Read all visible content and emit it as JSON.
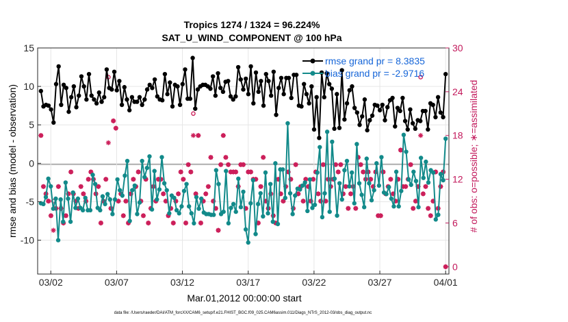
{
  "chart_data": {
    "type": "line",
    "title_line1": "Tropics 1274 / 1324 = 96.224%",
    "title_line2": "SAT_U_WIND_COMPONENT @ 100 hPa",
    "xlabel": "Mar.01,2012 00:00:00 start",
    "ylabel_left": "rmse and bias (model - observation)",
    "ylabel_right": "# of obs: o=possible; ∗=assimilated",
    "footnote": "data file: /Users/raeder/DAI/ATM_forcXX/CAM6_setup/f.e21.FHIST_BGC.f09_025.CAM6assim.011/Diags_NTrS_2012-03/obs_diag_output.nc",
    "xlim": [
      0,
      31.25
    ],
    "ylim_left": [
      -14.4,
      15
    ],
    "ylim_right": [
      -1,
      30
    ],
    "x_tick_labels": [
      "03/02",
      "03/07",
      "03/12",
      "03/17",
      "03/22",
      "03/27",
      "04/01"
    ],
    "x_tick_values": [
      1,
      6,
      11,
      16,
      21,
      26,
      31
    ],
    "y_left_ticks": [
      "15",
      "10",
      "5",
      "0",
      "-5",
      "-10"
    ],
    "y_left_tick_values": [
      15,
      10,
      5,
      0,
      -5,
      -10
    ],
    "y_right_ticks": [
      "30",
      "24",
      "18",
      "12",
      "6",
      "0"
    ],
    "y_right_tick_values": [
      30,
      24,
      18,
      12,
      6,
      0
    ],
    "legend": [
      "rmse grand pr = 8.3835",
      "bias grand pr = -2.9716"
    ],
    "legend_position": "top-right",
    "colors": {
      "rmse": "#000000",
      "bias": "#128a8a",
      "obs": "#cc1f5a",
      "legend_text": "#1565d8",
      "zero_line": "#b8b8b8"
    },
    "series": [
      {
        "name": "rmse",
        "marker": "dot",
        "values": [
          9.4,
          7.4,
          7.6,
          7.5,
          7.0,
          5.3,
          10.3,
          12.6,
          7.6,
          10.2,
          9.8,
          6.7,
          8.6,
          10.0,
          7.3,
          8.8,
          11.3,
          10.0,
          8.3,
          11.6,
          8.8,
          8.3,
          7.8,
          9.2,
          8.0,
          8.6,
          12.2,
          9.8,
          9.6,
          11.9,
          9.5,
          10.7,
          7.6,
          9.9,
          8.3,
          6.9,
          8.6,
          8.0,
          8.0,
          8.6,
          7.6,
          8.3,
          9.6,
          10.2,
          9.8,
          10.9,
          8.7,
          8.3,
          8.2,
          11.6,
          9.0,
          10.5,
          7.4,
          10.2,
          10.0,
          7.6,
          10.3,
          12.2,
          8.4,
          8.4,
          13.7,
          7.1,
          9.6,
          10.0,
          10.2,
          10.2,
          10.0,
          9.7,
          11.3,
          8.8,
          11.7,
          9.8,
          9.3,
          10.6,
          10.7,
          8.7,
          8.3,
          8.7,
          12.5,
          10.9,
          9.6,
          11.0,
          9.0,
          12.6,
          7.8,
          11.8,
          9.3,
          10.7,
          7.5,
          11.6,
          10.7,
          8.8,
          11.9,
          6.3,
          9.8,
          11.1,
          9.0,
          11.1,
          11.1,
          8.5,
          11.5,
          11.5,
          7.5,
          7.4,
          10.3,
          9.0,
          7.8,
          10.0,
          4.4,
          8.6,
          3.3,
          11.8,
          8.6,
          11.7,
          10.3,
          9.7,
          4.5,
          9.0,
          4.6,
          12.1,
          5.7,
          7.8,
          9.5,
          10.0,
          7.2,
          6.6,
          5.0,
          6.1,
          8.3,
          4.3,
          5.6,
          6.2,
          7.6,
          7.5,
          6.9,
          7.6,
          5.6,
          7.3,
          8.2,
          8.5,
          4.8,
          7.2,
          6.8,
          8.5,
          5.5,
          4.4,
          7.0,
          5.2,
          4.5,
          5.6,
          5.5,
          6.8,
          6.8,
          4.4,
          7.8,
          7.6,
          6.0,
          8.6,
          6.6,
          6.0,
          11.6
        ]
      },
      {
        "name": "bias",
        "marker": "dot",
        "values": [
          -5.2,
          -5.3,
          -4.4,
          -2.0,
          -3.0,
          -5.9,
          -4.6,
          -10.0,
          -4.7,
          -7.6,
          -2.5,
          -4.6,
          -7.6,
          -3.8,
          -5.8,
          -4.6,
          -5.8,
          -6.1,
          -4.5,
          -6.1,
          -6.1,
          -1.5,
          -2.7,
          -5.8,
          -6.1,
          -4.3,
          -5.3,
          -4.0,
          -4.7,
          -6.6,
          -4.7,
          -2.1,
          -3.5,
          -4.2,
          -1.6,
          0.3,
          -7.5,
          -3.5,
          -2.9,
          -6.6,
          -5.1,
          0.3,
          -1.8,
          -0.6,
          0.9,
          -6.0,
          -1.0,
          -4.7,
          -3.4,
          0.8,
          -2.6,
          -3.5,
          -6.5,
          -4.2,
          -4.5,
          -6.1,
          -6.5,
          -5.6,
          -3.6,
          -2.7,
          -5.6,
          -6.5,
          -7.8,
          -4.4,
          -5.9,
          -4.6,
          -6.4,
          -6.6,
          -6.6,
          -6.7,
          -6.7,
          -0.9,
          -2.7,
          -6.6,
          -6.3,
          -1.0,
          -7.8,
          -5.8,
          -5.3,
          -6.3,
          -2.0,
          -5.7,
          -3.7,
          -8.6,
          -10.3,
          -5.2,
          -2.2,
          -9.2,
          -5.3,
          -3.9,
          -6.9,
          -1.2,
          -6.5,
          -2.7,
          -7.6,
          0.0,
          -7.9,
          -0.8,
          -0.8,
          -4.5,
          5.2,
          -3.9,
          -6.6,
          -4.2,
          -3.3,
          -3.4,
          -2.9,
          -2.5,
          -6.2,
          -2.1,
          -5.8,
          -5.4,
          -1.2,
          2.1,
          -7.0,
          -3.9,
          4.1,
          -6.3,
          2.8,
          -2.0,
          -6.8,
          -2.6,
          -4.7,
          -0.9,
          0.3,
          -3.0,
          -1.2,
          -5.2,
          2.5,
          -2.6,
          -4.1,
          -5.7,
          0.6,
          -2.6,
          -4.8,
          -3.5,
          0.0,
          -2.9,
          0.8,
          -3.8,
          -4.0,
          -3.1,
          -4.6,
          -5.6,
          -1.1,
          -5.6,
          -3.6,
          3.7,
          1.5,
          -2.1,
          -2.8,
          -1.1,
          -2.3,
          -5.7,
          0.7,
          -1.9,
          0.2,
          -2.5,
          -0.9,
          -1.2,
          -7.3,
          -6.7,
          -1.4,
          -2.2,
          3.2
        ]
      },
      {
        "name": "possible",
        "marker": "circle",
        "values": [
          18,
          11,
          10,
          9,
          7,
          9,
          8,
          11,
          8,
          6,
          7,
          10,
          13,
          10,
          9,
          8,
          11,
          10,
          9,
          12,
          13,
          12,
          10,
          11,
          6,
          9,
          12,
          26,
          8,
          20,
          19,
          9,
          10,
          7,
          9,
          6,
          10,
          12,
          11,
          13,
          9,
          7,
          12,
          6,
          8,
          11,
          9,
          12,
          12,
          10,
          9,
          7,
          8,
          6,
          9,
          10,
          13,
          12,
          6,
          14,
          13,
          21,
          10,
          18,
          6,
          9,
          10,
          11,
          15,
          9,
          8,
          5,
          14,
          18,
          15,
          14,
          13,
          13,
          13,
          11,
          14,
          14,
          8,
          13,
          13,
          12,
          12,
          6,
          11,
          15,
          9,
          8,
          10,
          7,
          6,
          12,
          10,
          9,
          11,
          13,
          12,
          8,
          14,
          10,
          11,
          9,
          12,
          11,
          9,
          12,
          13,
          10,
          9,
          14,
          9,
          12,
          11,
          12,
          14,
          13,
          14,
          10,
          11,
          8,
          10,
          11,
          8,
          15,
          14,
          13,
          12,
          13,
          12,
          11,
          13,
          7,
          7,
          13,
          10,
          11,
          12,
          10,
          9,
          12,
          16,
          11,
          11,
          12,
          14,
          8,
          9,
          11,
          26,
          10,
          11,
          8,
          7,
          9,
          13,
          8,
          11,
          13,
          0
        ]
      },
      {
        "name": "assimilated",
        "marker": "asterisk",
        "values": [
          18,
          11,
          10,
          9,
          7,
          5,
          8,
          11,
          8,
          6,
          7,
          10,
          13,
          10,
          9,
          8,
          11,
          10,
          9,
          12,
          13,
          12,
          10,
          11,
          6,
          9,
          12,
          17,
          8,
          20,
          19,
          9,
          10,
          7,
          9,
          6,
          10,
          12,
          11,
          13,
          9,
          7,
          12,
          6,
          8,
          11,
          9,
          12,
          12,
          10,
          9,
          7,
          8,
          6,
          9,
          10,
          13,
          12,
          6,
          14,
          13,
          18,
          10,
          18,
          6,
          9,
          10,
          11,
          15,
          9,
          8,
          5,
          14,
          18,
          15,
          14,
          13,
          13,
          13,
          11,
          14,
          14,
          8,
          13,
          13,
          12,
          12,
          6,
          11,
          15,
          9,
          8,
          10,
          7,
          6,
          12,
          10,
          9,
          11,
          13,
          12,
          8,
          14,
          10,
          11,
          9,
          12,
          11,
          9,
          12,
          13,
          10,
          9,
          14,
          9,
          12,
          11,
          12,
          14,
          13,
          14,
          10,
          11,
          8,
          10,
          11,
          8,
          15,
          14,
          13,
          12,
          13,
          12,
          11,
          13,
          7,
          7,
          13,
          10,
          11,
          12,
          10,
          9,
          12,
          16,
          11,
          11,
          12,
          14,
          8,
          9,
          11,
          18,
          10,
          11,
          8,
          7,
          9,
          13,
          8,
          11,
          13,
          0
        ]
      }
    ]
  }
}
